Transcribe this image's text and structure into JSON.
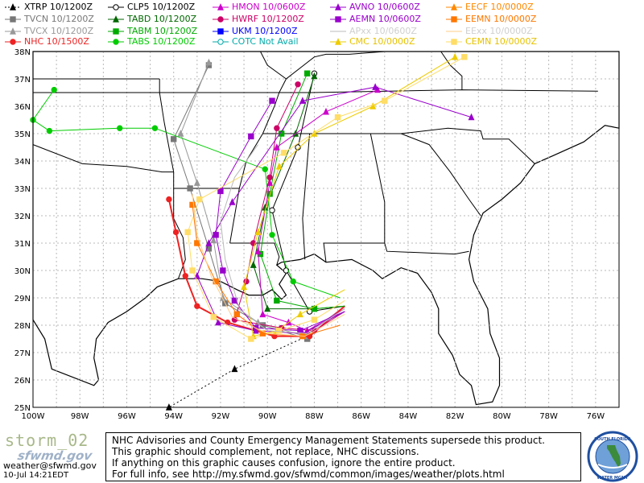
{
  "legend": [
    {
      "label": "XTRP  10/1200Z",
      "color": "#000000",
      "marker": "triangle",
      "dash": true,
      "filled": true
    },
    {
      "label": "CLP5  10/1200Z",
      "color": "#000000",
      "marker": "circle",
      "dash": false,
      "filled": false
    },
    {
      "label": "HMON  10/0600Z",
      "color": "#cc00cc",
      "marker": "triangle",
      "dash": false,
      "filled": true
    },
    {
      "label": "AVNO  10/0600Z",
      "color": "#9900cc",
      "marker": "triangle",
      "dash": false,
      "filled": true
    },
    {
      "label": "EECF  10/0000Z",
      "color": "#ff8800",
      "marker": "triangle",
      "dash": false,
      "filled": true
    },
    {
      "label": "TVCN  10/1200Z",
      "color": "#777777",
      "marker": "square",
      "dash": false,
      "filled": true
    },
    {
      "label": "TABD  10/1200Z",
      "color": "#006600",
      "marker": "triangle",
      "dash": false,
      "filled": true
    },
    {
      "label": "HWRF  10/1200Z",
      "color": "#cc0066",
      "marker": "circle",
      "dash": false,
      "filled": true
    },
    {
      "label": "AEMN  10/0600Z",
      "color": "#9900cc",
      "marker": "square",
      "dash": false,
      "filled": true
    },
    {
      "label": "EEMN  10/0000Z",
      "color": "#ff7700",
      "marker": "square",
      "dash": false,
      "filled": true
    },
    {
      "label": "TVCX  10/1200Z",
      "color": "#999999",
      "marker": "triangle",
      "dash": false,
      "filled": true
    },
    {
      "label": "TABM  10/1200Z",
      "color": "#00aa00",
      "marker": "square",
      "dash": false,
      "filled": true
    },
    {
      "label": "UKM  10/1200Z",
      "color": "#0000ff",
      "marker": "square",
      "dash": false,
      "filled": true
    },
    {
      "label": "APxx  10/0600Z",
      "color": "#bbbbbb",
      "marker": "none",
      "dash": false,
      "filled": false
    },
    {
      "label": "EExx  10/0000Z",
      "color": "#ffcc88",
      "marker": "none",
      "dash": false,
      "filled": false
    },
    {
      "label": "NHC  10/1500Z",
      "color": "#ee2222",
      "marker": "circle",
      "dash": false,
      "filled": true
    },
    {
      "label": "TABS  10/1200Z",
      "color": "#00cc00",
      "marker": "circle",
      "dash": false,
      "filled": true
    },
    {
      "label": "COTC  Not Avail",
      "color": "#00aaaa",
      "marker": "circle",
      "dash": false,
      "filled": false
    },
    {
      "label": "CMC  10/0000Z",
      "color": "#eecc00",
      "marker": "triangle",
      "dash": false,
      "filled": true
    },
    {
      "label": "CEMN  10/0000Z",
      "color": "#ffdd66",
      "marker": "square",
      "dash": false,
      "filled": true
    }
  ],
  "map": {
    "lon_range": [
      -100,
      -75
    ],
    "lat_range": [
      25,
      38
    ],
    "lat_ticks": [
      "38N",
      "37N",
      "36N",
      "35N",
      "34N",
      "33N",
      "32N",
      "31N",
      "30N",
      "29N",
      "28N",
      "27N",
      "26N",
      "25N"
    ],
    "lon_ticks": [
      "100W",
      "98W",
      "96W",
      "94W",
      "92W",
      "90W",
      "88W",
      "86W",
      "84W",
      "82W",
      "80W",
      "78W",
      "76W"
    ]
  },
  "tracks": [
    {
      "model": "XTRP",
      "color": "#000000",
      "dash": true,
      "marker": "triangle",
      "points": [
        [
          -88.3,
          27.6
        ],
        [
          -91.4,
          26.4
        ],
        [
          -94.2,
          25.0
        ]
      ]
    },
    {
      "model": "CLP5",
      "color": "#000000",
      "marker": "circle",
      "points": [
        [
          -86.7,
          28.7
        ],
        [
          -88.2,
          28.5
        ],
        [
          -89.2,
          30.0
        ],
        [
          -89.8,
          32.2
        ],
        [
          -88.7,
          34.5
        ],
        [
          -88.0,
          37.2
        ]
      ]
    },
    {
      "model": "TVCN",
      "color": "#777777",
      "marker": "square",
      "points": [
        [
          -86.7,
          28.7
        ],
        [
          -88.3,
          27.5
        ],
        [
          -90.2,
          28.0
        ],
        [
          -91.8,
          28.8
        ],
        [
          -92.5,
          30.8
        ],
        [
          -93.3,
          33.0
        ],
        [
          -94.0,
          34.8
        ],
        [
          -92.5,
          37.5
        ]
      ]
    },
    {
      "model": "TVCX",
      "color": "#999999",
      "marker": "triangle",
      "points": [
        [
          -86.7,
          28.7
        ],
        [
          -88.4,
          27.6
        ],
        [
          -90.4,
          28.1
        ],
        [
          -91.9,
          29.0
        ],
        [
          -92.3,
          31.1
        ],
        [
          -93.0,
          33.2
        ],
        [
          -93.7,
          35.0
        ],
        [
          -92.5,
          37.6
        ]
      ]
    },
    {
      "model": "NHC",
      "color": "#ee2222",
      "marker": "circle",
      "points": [
        [
          -86.7,
          28.7
        ],
        [
          -88.2,
          27.6
        ],
        [
          -89.7,
          27.6
        ],
        [
          -91.7,
          28.1
        ],
        [
          -93.0,
          28.7
        ],
        [
          -93.5,
          29.8
        ],
        [
          -93.9,
          31.4
        ],
        [
          -94.2,
          32.6
        ]
      ]
    },
    {
      "model": "TABD",
      "color": "#006600",
      "marker": "triangle",
      "points": [
        [
          -86.7,
          28.7
        ],
        [
          -88.0,
          28.6
        ],
        [
          -90.0,
          28.6
        ],
        [
          -90.6,
          30.2
        ],
        [
          -90.1,
          32.3
        ],
        [
          -88.8,
          35.0
        ],
        [
          -88.0,
          37.1
        ]
      ]
    },
    {
      "model": "TABM",
      "color": "#00aa00",
      "marker": "square",
      "points": [
        [
          -86.7,
          28.7
        ],
        [
          -88.0,
          28.6
        ],
        [
          -89.6,
          28.9
        ],
        [
          -90.3,
          30.6
        ],
        [
          -89.9,
          32.8
        ],
        [
          -89.4,
          35.0
        ],
        [
          -88.3,
          37.2
        ]
      ]
    },
    {
      "model": "TABS",
      "color": "#00cc00",
      "marker": "circle",
      "points": [
        [
          -86.9,
          29.0
        ],
        [
          -88.9,
          29.6
        ],
        [
          -89.8,
          31.3
        ],
        [
          -90.1,
          33.7
        ],
        [
          -94.8,
          35.2
        ],
        [
          -96.3,
          35.2
        ],
        [
          -99.3,
          35.1
        ],
        [
          -100.0,
          35.5
        ],
        [
          -99.1,
          36.6
        ]
      ]
    },
    {
      "model": "HMON",
      "color": "#cc00cc",
      "marker": "triangle",
      "points": [
        [
          -86.7,
          28.6
        ],
        [
          -88.3,
          27.8
        ],
        [
          -89.1,
          28.1
        ],
        [
          -90.2,
          28.4
        ],
        [
          -90.4,
          30.7
        ],
        [
          -89.9,
          33.2
        ],
        [
          -89.6,
          34.5
        ],
        [
          -87.5,
          35.8
        ],
        [
          -85.3,
          36.6
        ]
      ]
    },
    {
      "model": "HWRF",
      "color": "#cc0066",
      "marker": "circle",
      "points": [
        [
          -86.7,
          28.5
        ],
        [
          -88.0,
          27.8
        ],
        [
          -89.4,
          27.9
        ],
        [
          -91.4,
          28.2
        ],
        [
          -90.9,
          29.6
        ],
        [
          -90.6,
          31.0
        ],
        [
          -89.9,
          33.4
        ],
        [
          -89.6,
          35.2
        ],
        [
          -88.7,
          36.8
        ]
      ]
    },
    {
      "model": "AVNO",
      "color": "#9900cc",
      "marker": "triangle",
      "points": [
        [
          -86.7,
          28.5
        ],
        [
          -88.5,
          27.7
        ],
        [
          -90.5,
          27.8
        ],
        [
          -92.1,
          28.1
        ],
        [
          -93.0,
          29.8
        ],
        [
          -92.5,
          31.0
        ],
        [
          -91.5,
          32.5
        ],
        [
          -88.5,
          36.2
        ],
        [
          -85.4,
          36.7
        ],
        [
          -81.3,
          35.6
        ]
      ]
    },
    {
      "model": "AEMN",
      "color": "#9900cc",
      "marker": "square",
      "points": [
        [
          -86.7,
          28.5
        ],
        [
          -88.6,
          27.8
        ],
        [
          -90.5,
          27.9
        ],
        [
          -91.4,
          28.9
        ],
        [
          -91.9,
          30.0
        ],
        [
          -92.2,
          31.3
        ],
        [
          -92.0,
          32.9
        ],
        [
          -90.7,
          34.9
        ],
        [
          -89.8,
          36.2
        ]
      ]
    },
    {
      "model": "CMC",
      "color": "#eecc00",
      "marker": "triangle",
      "points": [
        [
          -86.7,
          29.3
        ],
        [
          -88.6,
          28.4
        ],
        [
          -89.6,
          27.8
        ],
        [
          -90.6,
          27.6
        ],
        [
          -91.0,
          29.4
        ],
        [
          -90.4,
          31.4
        ],
        [
          -89.5,
          33.8
        ],
        [
          -88.0,
          35.0
        ],
        [
          -85.5,
          36.0
        ],
        [
          -82.0,
          37.8
        ]
      ]
    },
    {
      "model": "CEMN",
      "color": "#ffdd66",
      "marker": "square",
      "points": [
        [
          -86.7,
          28.9
        ],
        [
          -88.0,
          28.2
        ],
        [
          -89.5,
          27.8
        ],
        [
          -90.7,
          27.5
        ],
        [
          -92.3,
          28.3
        ],
        [
          -93.2,
          30.0
        ],
        [
          -93.4,
          31.4
        ],
        [
          -92.9,
          32.6
        ],
        [
          -89.3,
          34.3
        ],
        [
          -87.0,
          35.6
        ],
        [
          -85.0,
          36.2
        ],
        [
          -81.6,
          37.8
        ]
      ]
    },
    {
      "model": "EEMN",
      "color": "#ff7700",
      "marker": "square",
      "points": [
        [
          -86.9,
          28.0
        ],
        [
          -88.5,
          27.6
        ],
        [
          -90.2,
          27.7
        ],
        [
          -91.3,
          28.4
        ],
        [
          -92.2,
          29.6
        ],
        [
          -93.0,
          31.0
        ],
        [
          -93.2,
          32.4
        ]
      ]
    },
    {
      "model": "APxx",
      "color": "#bbbbbb",
      "marker": "none",
      "points": [
        [
          -86.7,
          28.6
        ],
        [
          -88.3,
          27.7
        ],
        [
          -90.0,
          27.8
        ],
        [
          -91.2,
          28.6
        ],
        [
          -91.8,
          30.4
        ],
        [
          -92.0,
          31.8
        ],
        [
          -91.4,
          33.4
        ],
        [
          -90.4,
          34.6
        ]
      ]
    },
    {
      "model": "EExx",
      "color": "#ffcc88",
      "marker": "none",
      "points": [
        [
          -86.7,
          28.4
        ],
        [
          -88.4,
          27.6
        ],
        [
          -90.0,
          27.7
        ],
        [
          -91.5,
          28.3
        ],
        [
          -92.4,
          29.8
        ],
        [
          -93.0,
          31.3
        ],
        [
          -93.2,
          32.8
        ]
      ]
    }
  ],
  "footer": {
    "brand_storm": "storm_02",
    "brand_logo": "sfwmd.gov",
    "email": "weather@sfwmd.gov",
    "timestamp": "10-Jul 14:21EDT",
    "disclaimer_lines": [
      "NHC Advisories and County Emergency Management Statements supersede this product.",
      "This graphic should complement, not replace, NHC discussions.",
      "If anything on this graphic causes confusion, ignore the entire product.",
      "For full info, see  http://my.sfwmd.gov/sfwmd/common/images/weather/plots.html"
    ],
    "seal_text": "SOUTH FLORIDA WATER MANAGEMENT DISTRICT"
  }
}
